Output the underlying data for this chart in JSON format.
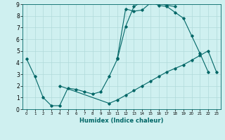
{
  "xlabel": "Humidex (Indice chaleur)",
  "bg_color": "#cff0f0",
  "line_color": "#006666",
  "grid_color": "#b0dada",
  "xlim": [
    -0.5,
    23.5
  ],
  "ylim": [
    0,
    9
  ],
  "xticks": [
    0,
    1,
    2,
    3,
    4,
    5,
    6,
    7,
    8,
    9,
    10,
    11,
    12,
    13,
    14,
    15,
    16,
    17,
    18,
    19,
    20,
    21,
    22,
    23
  ],
  "yticks": [
    0,
    1,
    2,
    3,
    4,
    5,
    6,
    7,
    8,
    9
  ],
  "line1_x": [
    0,
    1,
    2,
    3,
    4,
    5,
    6,
    7,
    8,
    9,
    10,
    11,
    12,
    13,
    14,
    15,
    16,
    17,
    18,
    19,
    20,
    21,
    22
  ],
  "line1_y": [
    4.3,
    2.8,
    1.0,
    0.3,
    0.3,
    1.8,
    1.7,
    1.5,
    1.3,
    1.5,
    2.8,
    4.3,
    7.1,
    8.8,
    9.2,
    9.2,
    8.9,
    8.8,
    8.3,
    7.8,
    6.3,
    4.8,
    3.2
  ],
  "line2_x": [
    11,
    12,
    13,
    14,
    15,
    16,
    17,
    18
  ],
  "line2_y": [
    4.4,
    8.6,
    8.4,
    8.5,
    9.1,
    9.1,
    8.9,
    8.8
  ],
  "line3_x": [
    4,
    10,
    11,
    12,
    13,
    14,
    15,
    16,
    17,
    18,
    19,
    20,
    21,
    22,
    23
  ],
  "line3_y": [
    2.0,
    0.5,
    0.8,
    1.2,
    1.6,
    2.0,
    2.4,
    2.8,
    3.2,
    3.5,
    3.8,
    4.2,
    4.6,
    5.0,
    3.2
  ]
}
